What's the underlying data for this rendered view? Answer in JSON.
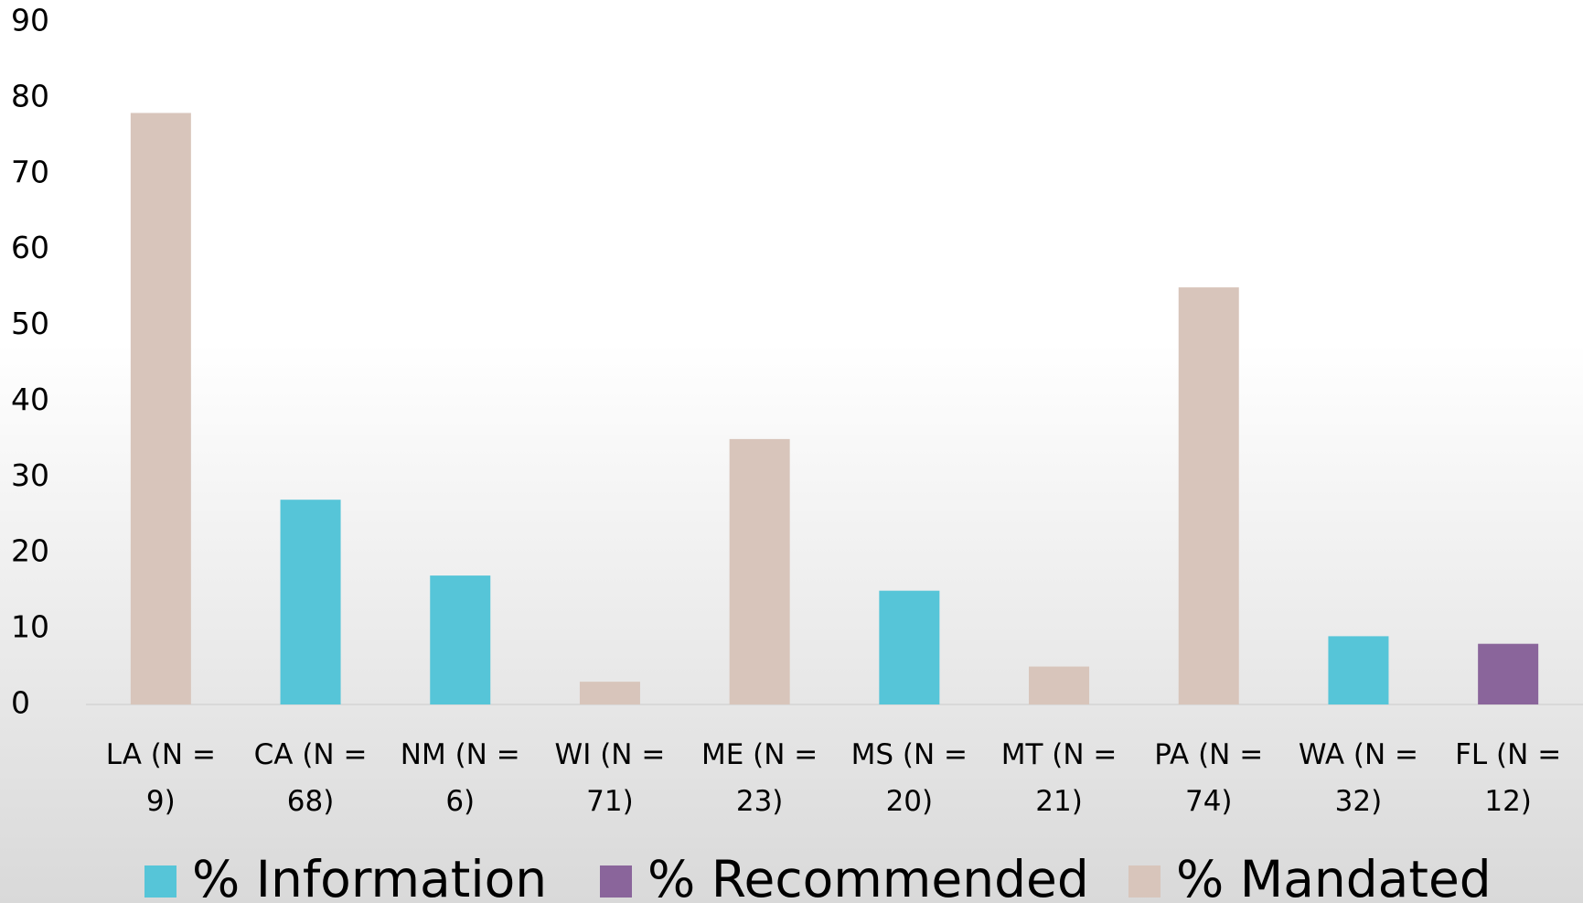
{
  "chart_data": {
    "type": "bar",
    "categories": [
      "LA (N = 9)",
      "CA (N = 68)",
      "NM (N = 6)",
      "WI (N = 71)",
      "ME (N = 23)",
      "MS (N = 20)",
      "MT (N = 21)",
      "PA (N = 74)",
      "WA (N = 32)",
      "FL (N = 12)"
    ],
    "series": [
      {
        "name": "% Information",
        "color": "#56c5d8",
        "values": [
          null,
          27,
          17,
          null,
          null,
          15,
          null,
          null,
          9,
          null
        ]
      },
      {
        "name": "% Recommended",
        "color": "#8a659b",
        "values": [
          null,
          null,
          null,
          null,
          null,
          null,
          null,
          null,
          null,
          8
        ]
      },
      {
        "name": "% Mandated",
        "color": "#d8c5bb",
        "values": [
          78,
          null,
          null,
          3,
          35,
          null,
          5,
          55,
          null,
          null
        ]
      }
    ],
    "ylim": [
      0,
      90
    ],
    "yticks": [
      0,
      10,
      20,
      30,
      40,
      50,
      60,
      70,
      80,
      90
    ],
    "grid": false,
    "legend": "bottom"
  }
}
